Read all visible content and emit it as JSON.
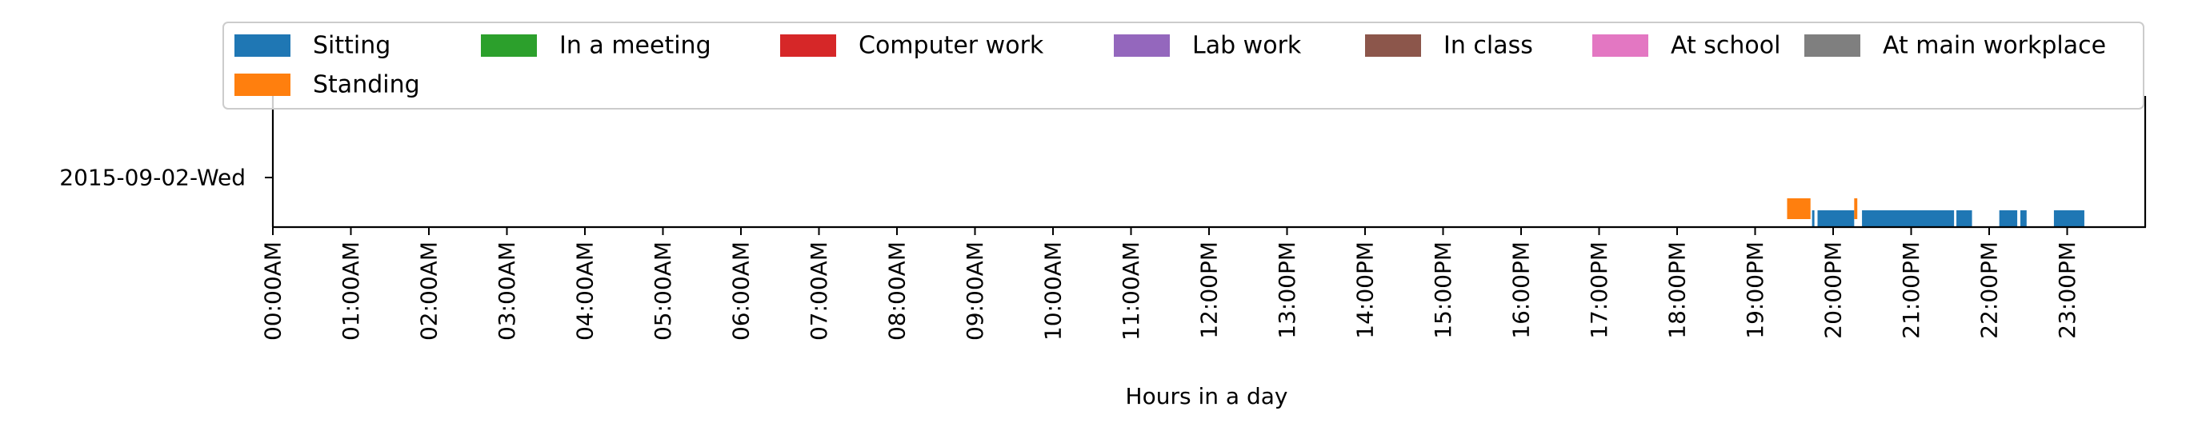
{
  "chart_data": {
    "type": "timeline",
    "title": "",
    "xlabel": "Hours in a day",
    "ylabel": "",
    "xlim_hours": [
      0,
      24
    ],
    "grid": false,
    "legend_position": "top",
    "rows": [
      "2015-09-02-Wed"
    ],
    "x_tick_labels": [
      "00:00AM",
      "01:00AM",
      "02:00AM",
      "03:00AM",
      "04:00AM",
      "05:00AM",
      "06:00AM",
      "07:00AM",
      "08:00AM",
      "09:00AM",
      "10:00AM",
      "11:00AM",
      "12:00PM",
      "13:00PM",
      "14:00PM",
      "15:00PM",
      "16:00PM",
      "17:00PM",
      "18:00PM",
      "19:00PM",
      "20:00PM",
      "21:00PM",
      "22:00PM",
      "23:00PM"
    ],
    "legend": [
      {
        "label": "Sitting",
        "color": "#1f77b4"
      },
      {
        "label": "In a meeting",
        "color": "#2ca02c"
      },
      {
        "label": "Computer work",
        "color": "#d62728"
      },
      {
        "label": "Lab work",
        "color": "#9467bd"
      },
      {
        "label": "In class",
        "color": "#8c564b"
      },
      {
        "label": "At school",
        "color": "#e377c2"
      },
      {
        "label": "At main workplace",
        "color": "#7f7f7f"
      },
      {
        "label": "Standing",
        "color": "#ff7f0e"
      }
    ],
    "series": [
      {
        "name": "Sitting",
        "color": "#1f77b4",
        "track": 0,
        "segments": [
          [
            19.73,
            19.76
          ],
          [
            19.8,
            20.27
          ],
          [
            20.37,
            21.55
          ],
          [
            21.58,
            21.78
          ],
          [
            22.13,
            22.36
          ],
          [
            22.4,
            22.48
          ],
          [
            22.83,
            23.22
          ]
        ]
      },
      {
        "name": "Standing",
        "color": "#ff7f0e",
        "track": 1,
        "segments": [
          [
            19.41,
            19.71
          ],
          [
            20.27,
            20.31
          ]
        ]
      }
    ]
  }
}
